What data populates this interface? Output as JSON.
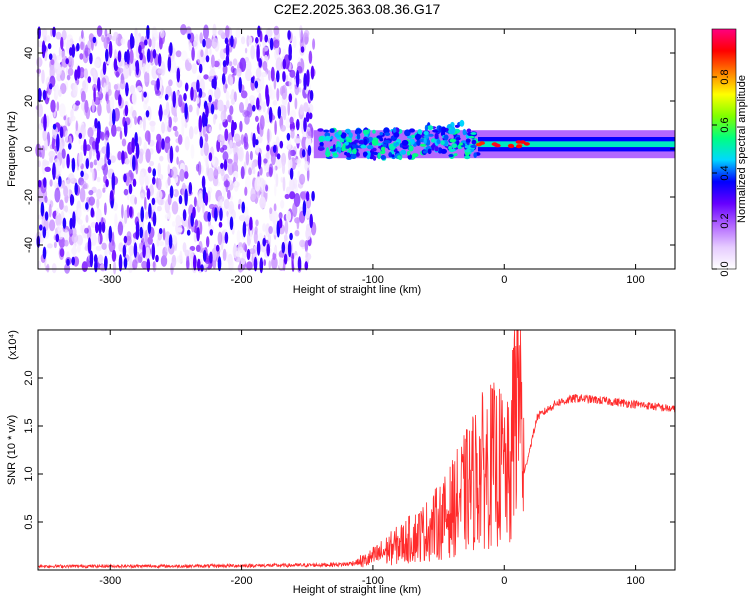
{
  "title": "C2E2.2025.363.08.36.G17",
  "chart_data": [
    {
      "type": "heatmap",
      "xlabel": "Height of straight line (km)",
      "ylabel": "Frequency (Hz)",
      "xlim": [
        -355,
        130
      ],
      "ylim": [
        -50,
        50
      ],
      "xticks": [
        -300,
        -200,
        -100,
        0,
        100
      ],
      "yticks": [
        -40,
        -20,
        0,
        20,
        40
      ],
      "colorbar": {
        "label": "Normalized spectral amplitude",
        "range": [
          0,
          1
        ],
        "ticks": [
          0.0,
          0.2,
          0.4,
          0.6,
          0.8
        ],
        "colormap": [
          "#ffffff",
          "#e6ccff",
          "#b266ff",
          "#6600ff",
          "#0000ff",
          "#00d8ff",
          "#00ff80",
          "#80ff00",
          "#ffff00",
          "#ff8000",
          "#ff0000",
          "#ff0080"
        ]
      },
      "regions": [
        {
          "name": "broadband noise",
          "x_range": [
            -355,
            -145
          ],
          "freq_range": [
            -50,
            50
          ],
          "amplitude": 0.05
        },
        {
          "name": "signal band",
          "x_range": [
            -145,
            130
          ],
          "center_freq": 2,
          "half_width_hz": 5,
          "amplitude": 0.5
        }
      ]
    },
    {
      "type": "line",
      "xlabel": "Height of straight line (km)",
      "ylabel": "SNR (10 * v/v)",
      "y_scale_note": "(x10⁴)",
      "xlim": [
        -355,
        130
      ],
      "ylim": [
        0,
        2.5
      ],
      "xticks": [
        -300,
        -200,
        -100,
        0,
        100
      ],
      "yticks": [
        0.5,
        1.0,
        1.5,
        2.0
      ],
      "series": [
        {
          "name": "SNR",
          "color": "#ff2a2a",
          "x": [
            -355,
            -300,
            -250,
            -200,
            -150,
            -120,
            -105,
            -90,
            -75,
            -60,
            -45,
            -30,
            -20,
            -10,
            0,
            5,
            10,
            15,
            25,
            40,
            55,
            70,
            90,
            110,
            130
          ],
          "y": [
            0.04,
            0.04,
            0.04,
            0.045,
            0.05,
            0.06,
            0.1,
            0.2,
            0.3,
            0.4,
            0.55,
            0.8,
            1.0,
            1.1,
            1.05,
            0.9,
            2.45,
            1.0,
            1.6,
            1.75,
            1.8,
            1.78,
            1.75,
            1.72,
            1.68
          ]
        }
      ]
    }
  ]
}
